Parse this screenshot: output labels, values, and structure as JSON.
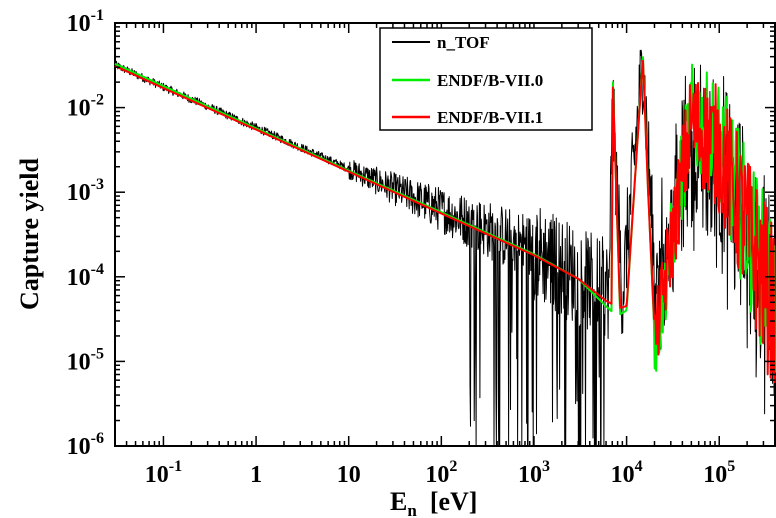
{
  "chart_data": {
    "type": "line",
    "xlabel": {
      "main": "E",
      "sub": "n",
      "rest": "  [eV]"
    },
    "ylabel": "Capture yield",
    "x_scale": "log",
    "y_scale": "log",
    "xlim": [
      0.03,
      400000
    ],
    "ylim": [
      1e-06,
      0.1
    ],
    "grid": false,
    "legend_position": "top-right",
    "x_ticks": [
      {
        "value": 0.1,
        "base": "10",
        "exp": "-1"
      },
      {
        "value": 1,
        "base": "1",
        "exp": ""
      },
      {
        "value": 10,
        "base": "10",
        "exp": ""
      },
      {
        "value": 100,
        "base": "10",
        "exp": "2"
      },
      {
        "value": 1000,
        "base": "10",
        "exp": "3"
      },
      {
        "value": 10000,
        "base": "10",
        "exp": "4"
      },
      {
        "value": 100000,
        "base": "10",
        "exp": "5"
      }
    ],
    "y_ticks": [
      {
        "value": 0.1,
        "base": "10",
        "exp": "-1"
      },
      {
        "value": 0.01,
        "base": "10",
        "exp": "-2"
      },
      {
        "value": 0.001,
        "base": "10",
        "exp": "-3"
      },
      {
        "value": 0.0001,
        "base": "10",
        "exp": "-4"
      },
      {
        "value": 1e-05,
        "base": "10",
        "exp": "-5"
      },
      {
        "value": 1e-06,
        "base": "10",
        "exp": "-6"
      }
    ],
    "series": [
      {
        "name": "n_TOF",
        "color": "#000000",
        "kind": "measured",
        "x": [
          0.03,
          0.1,
          1,
          10,
          100,
          1000,
          2000,
          4000,
          6500,
          7000,
          9000,
          15000,
          20000,
          50000,
          100000,
          400000
        ],
        "y": [
          0.032,
          0.0175,
          0.0058,
          0.0019,
          0.00062,
          0.00021,
          0.00013,
          8.5e-05,
          7e-05,
          0.012,
          6e-05,
          0.037,
          0.00012,
          0.006,
          0.0035,
          0.00012
        ]
      },
      {
        "name": "ENDF/B-VII.0",
        "color": "#00ee00",
        "kind": "evaluated",
        "x": [
          0.03,
          0.1,
          1,
          10,
          100,
          1000,
          3000,
          6000,
          6900,
          7100,
          8500,
          10000,
          15000,
          17000,
          20000,
          50000,
          100000,
          400000
        ],
        "y": [
          0.033,
          0.018,
          0.0057,
          0.0018,
          0.00058,
          0.000185,
          9.5e-05,
          4.5e-05,
          3.9e-05,
          0.022,
          3.6e-05,
          4e-05,
          0.042,
          0.0012,
          2e-05,
          0.014,
          0.0075,
          0.00012
        ]
      },
      {
        "name": "ENDF/B-VII.1",
        "color": "#ff0000",
        "kind": "evaluated",
        "x": [
          0.03,
          0.1,
          1,
          10,
          100,
          1000,
          3000,
          6000,
          6900,
          7100,
          8500,
          10000,
          15000,
          17000,
          20000,
          50000,
          100000,
          400000
        ],
        "y": [
          0.031,
          0.017,
          0.0055,
          0.00175,
          0.00056,
          0.00018,
          9.5e-05,
          5.2e-05,
          4.8e-05,
          0.019,
          4.3e-05,
          4.5e-05,
          0.038,
          0.0011,
          2.4e-05,
          0.012,
          0.0065,
          0.0001
        ]
      }
    ]
  }
}
